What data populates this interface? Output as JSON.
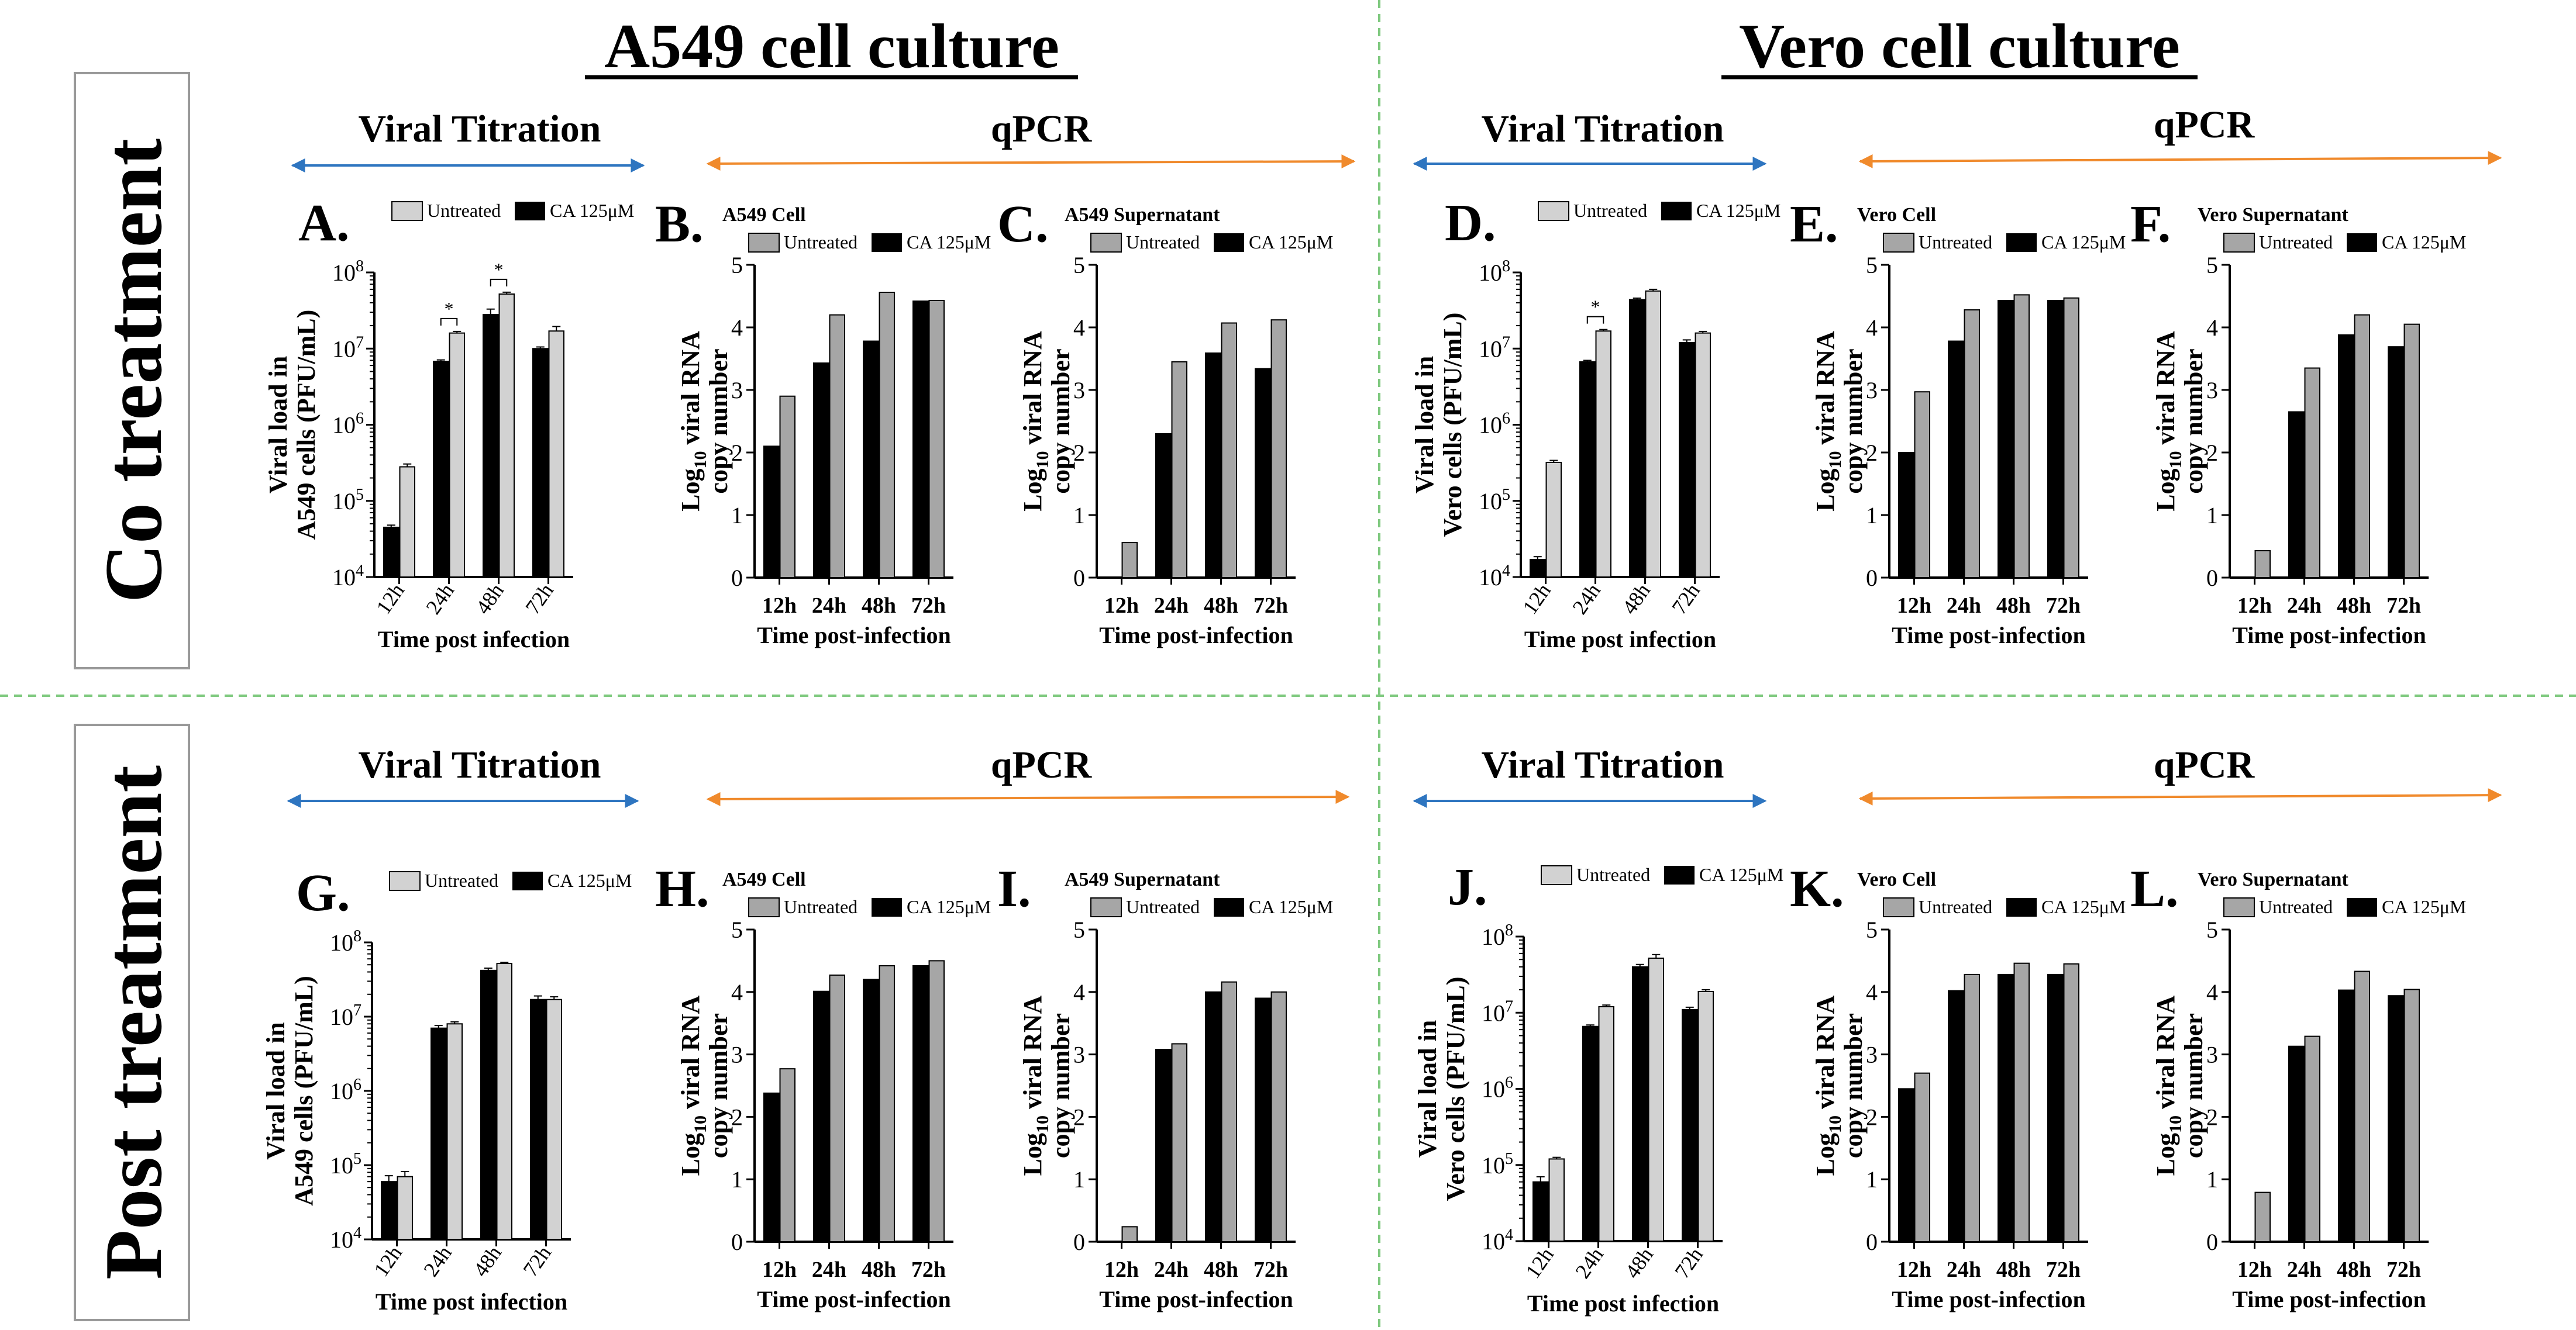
{
  "page": {
    "left_title": "A549 cell culture",
    "right_title": "Vero cell culture",
    "row_labels": [
      "Co treatment",
      "Post treatment"
    ],
    "section_labels": {
      "titration": "Viral Titration",
      "qpcr": "qPCR"
    },
    "colors": {
      "untreated_light": "#d2d2d2",
      "untreated_gray": "#a6a6a6",
      "treated": "#000000",
      "titration_arrow": "#2e75c0",
      "qpcr_arrow": "#f08a2c",
      "divider": "#7fc97f"
    }
  },
  "chart_data": [
    {
      "panel": "A.",
      "type": "bar",
      "title": "",
      "ylabel": [
        "Viral load in",
        "A549 cells (PFU/mL)"
      ],
      "xlabel": "Time post infection",
      "scale": "log",
      "ylim": [
        10000,
        100000000
      ],
      "rotated_ticks": true,
      "categories": [
        "12h",
        "24h",
        "48h",
        "72h"
      ],
      "legend": [
        "Untreated",
        "CA 125μM"
      ],
      "series": [
        {
          "name": "CA 125μM",
          "values": [
            45000,
            6800000,
            28000000,
            10000000
          ],
          "errors": [
            3000,
            300000,
            5000000,
            500000
          ]
        },
        {
          "name": "Untreated",
          "values": [
            280000,
            16000000,
            52000000,
            17000000
          ],
          "errors": [
            25000,
            800000,
            3000000,
            2500000
          ]
        }
      ],
      "significance": [
        {
          "category": "24h",
          "label": "*"
        },
        {
          "category": "48h",
          "label": "*"
        }
      ]
    },
    {
      "panel": "B.",
      "type": "bar",
      "title": "A549 Cell",
      "ylabel": [
        "Log10 viral RNA",
        "copy number"
      ],
      "xlabel": "Time post-infection",
      "scale": "linear",
      "ylim": [
        0,
        5
      ],
      "ticks": [
        0,
        1,
        2,
        3,
        4,
        5
      ],
      "rotated_ticks": false,
      "categories": [
        "12h",
        "24h",
        "48h",
        "72h"
      ],
      "legend": [
        "Untreated",
        "CA 125μM"
      ],
      "series": [
        {
          "name": "CA 125μM",
          "values": [
            2.1,
            3.43,
            3.78,
            4.42
          ]
        },
        {
          "name": "Untreated",
          "values": [
            2.9,
            4.2,
            4.56,
            4.43
          ]
        }
      ]
    },
    {
      "panel": "C.",
      "type": "bar",
      "title": "A549 Supernatant",
      "ylabel": [
        "Log10 viral RNA",
        "copy number"
      ],
      "xlabel": "Time post-infection",
      "scale": "linear",
      "ylim": [
        0,
        5
      ],
      "ticks": [
        0,
        1,
        2,
        3,
        4,
        5
      ],
      "rotated_ticks": false,
      "categories": [
        "12h",
        "24h",
        "48h",
        "72h"
      ],
      "legend": [
        "Untreated",
        "CA 125μM"
      ],
      "series": [
        {
          "name": "CA 125μM",
          "values": [
            0,
            2.3,
            3.59,
            3.34
          ]
        },
        {
          "name": "Untreated",
          "values": [
            0.56,
            3.45,
            4.07,
            4.12
          ]
        }
      ]
    },
    {
      "panel": "D.",
      "type": "bar",
      "title": "",
      "ylabel": [
        "Viral load in",
        "Vero cells (PFU/mL)"
      ],
      "xlabel": "Time post infection",
      "scale": "log",
      "ylim": [
        10000,
        100000000
      ],
      "rotated_ticks": true,
      "categories": [
        "12h",
        "24h",
        "48h",
        "72h"
      ],
      "legend": [
        "Untreated",
        "CA 125μM"
      ],
      "series": [
        {
          "name": "CA 125μM",
          "values": [
            17000,
            6700000,
            44000000,
            12000000
          ],
          "errors": [
            1500,
            300000,
            2000000,
            1000000
          ]
        },
        {
          "name": "Untreated",
          "values": [
            320000,
            17000000,
            57000000,
            16000000
          ],
          "errors": [
            20000,
            800000,
            3000000,
            800000
          ]
        }
      ],
      "significance": [
        {
          "category": "24h",
          "label": "*"
        }
      ]
    },
    {
      "panel": "E.",
      "type": "bar",
      "title": "Vero Cell",
      "ylabel": [
        "Log10 viral RNA",
        "copy number"
      ],
      "xlabel": "Time post-infection",
      "scale": "linear",
      "ylim": [
        0,
        5
      ],
      "ticks": [
        0,
        1,
        2,
        3,
        4,
        5
      ],
      "rotated_ticks": false,
      "categories": [
        "12h",
        "24h",
        "48h",
        "72h"
      ],
      "legend": [
        "Untreated",
        "CA 125μM"
      ],
      "series": [
        {
          "name": "CA 125μM",
          "values": [
            2.0,
            3.78,
            4.43,
            4.43
          ]
        },
        {
          "name": "Untreated",
          "values": [
            2.97,
            4.28,
            4.52,
            4.47
          ]
        }
      ]
    },
    {
      "panel": "F.",
      "type": "bar",
      "title": "Vero Supernatant",
      "ylabel": [
        "Log10 viral RNA",
        "copy number"
      ],
      "xlabel": "Time post-infection",
      "scale": "linear",
      "ylim": [
        0,
        5
      ],
      "ticks": [
        0,
        1,
        2,
        3,
        4,
        5
      ],
      "rotated_ticks": false,
      "categories": [
        "12h",
        "24h",
        "48h",
        "72h"
      ],
      "legend": [
        "Untreated",
        "CA 125μM"
      ],
      "series": [
        {
          "name": "CA 125μM",
          "values": [
            0,
            2.65,
            3.88,
            3.69
          ]
        },
        {
          "name": "Untreated",
          "values": [
            0.43,
            3.35,
            4.2,
            4.05
          ]
        }
      ]
    },
    {
      "panel": "G.",
      "type": "bar",
      "title": "",
      "ylabel": [
        "Viral load in",
        "A549 cells (PFU/mL)"
      ],
      "xlabel": "Time post infection",
      "scale": "log",
      "ylim": [
        10000,
        100000000
      ],
      "rotated_ticks": true,
      "categories": [
        "12h",
        "24h",
        "48h",
        "72h"
      ],
      "legend": [
        "Untreated",
        "CA 125μM"
      ],
      "series": [
        {
          "name": "CA 125μM",
          "values": [
            60000,
            7000000,
            42000000,
            17000000
          ],
          "errors": [
            12000,
            600000,
            3000000,
            2000000
          ]
        },
        {
          "name": "Untreated",
          "values": [
            70000,
            8000000,
            52000000,
            17000000
          ],
          "errors": [
            12000,
            500000,
            2000000,
            1500000
          ]
        }
      ]
    },
    {
      "panel": "H.",
      "type": "bar",
      "title": "A549 Cell",
      "ylabel": [
        "Log10 viral RNA",
        "copy number"
      ],
      "xlabel": "Time post-infection",
      "scale": "linear",
      "ylim": [
        0,
        5
      ],
      "ticks": [
        0,
        1,
        2,
        3,
        4,
        5
      ],
      "rotated_ticks": false,
      "categories": [
        "12h",
        "24h",
        "48h",
        "72h"
      ],
      "legend": [
        "Untreated",
        "CA 125μM"
      ],
      "series": [
        {
          "name": "CA 125μM",
          "values": [
            2.38,
            4.01,
            4.2,
            4.42
          ]
        },
        {
          "name": "Untreated",
          "values": [
            2.77,
            4.27,
            4.42,
            4.5
          ]
        }
      ]
    },
    {
      "panel": "I.",
      "type": "bar",
      "title": "A549 Supernatant",
      "ylabel": [
        "Log10 viral RNA",
        "copy number"
      ],
      "xlabel": "Time post-infection",
      "scale": "linear",
      "ylim": [
        0,
        5
      ],
      "ticks": [
        0,
        1,
        2,
        3,
        4,
        5
      ],
      "rotated_ticks": false,
      "categories": [
        "12h",
        "24h",
        "48h",
        "72h"
      ],
      "legend": [
        "Untreated",
        "CA 125μM"
      ],
      "series": [
        {
          "name": "CA 125μM",
          "values": [
            0,
            3.08,
            4.0,
            3.9
          ]
        },
        {
          "name": "Untreated",
          "values": [
            0.24,
            3.17,
            4.16,
            4.0
          ]
        }
      ]
    },
    {
      "panel": "J.",
      "type": "bar",
      "title": "",
      "ylabel": [
        "Viral load in",
        "Vero cells (PFU/mL)"
      ],
      "xlabel": "Time post infection",
      "scale": "log",
      "ylim": [
        10000,
        100000000
      ],
      "rotated_ticks": true,
      "categories": [
        "12h",
        "24h",
        "48h",
        "72h"
      ],
      "legend": [
        "Untreated",
        "CA 125μM"
      ],
      "series": [
        {
          "name": "CA 125μM",
          "values": [
            60000,
            6600000,
            40000000,
            11000000
          ],
          "errors": [
            10000,
            300000,
            3000000,
            800000
          ]
        },
        {
          "name": "Untreated",
          "values": [
            120000,
            12000000,
            52000000,
            19000000
          ],
          "errors": [
            6000,
            600000,
            6000000,
            1000000
          ]
        }
      ]
    },
    {
      "panel": "K.",
      "type": "bar",
      "title": "Vero Cell",
      "ylabel": [
        "Log10 viral RNA",
        "copy number"
      ],
      "xlabel": "Time post-infection",
      "scale": "linear",
      "ylim": [
        0,
        5
      ],
      "ticks": [
        0,
        1,
        2,
        3,
        4,
        5
      ],
      "rotated_ticks": false,
      "categories": [
        "12h",
        "24h",
        "48h",
        "72h"
      ],
      "legend": [
        "Untreated",
        "CA 125μM"
      ],
      "series": [
        {
          "name": "CA 125μM",
          "values": [
            2.45,
            4.02,
            4.28,
            4.28
          ]
        },
        {
          "name": "Untreated",
          "values": [
            2.7,
            4.28,
            4.46,
            4.45
          ]
        }
      ]
    },
    {
      "panel": "L.",
      "type": "bar",
      "title": "Vero Supernatant",
      "ylabel": [
        "Log10 viral RNA",
        "copy number"
      ],
      "xlabel": "Time post-infection",
      "scale": "linear",
      "ylim": [
        0,
        5
      ],
      "ticks": [
        0,
        1,
        2,
        3,
        4,
        5
      ],
      "rotated_ticks": false,
      "categories": [
        "12h",
        "24h",
        "48h",
        "72h"
      ],
      "legend": [
        "Untreated",
        "CA 125μM"
      ],
      "series": [
        {
          "name": "CA 125μM",
          "values": [
            0,
            3.13,
            4.03,
            3.94
          ]
        },
        {
          "name": "Untreated",
          "values": [
            0.79,
            3.29,
            4.33,
            4.04
          ]
        }
      ]
    }
  ]
}
